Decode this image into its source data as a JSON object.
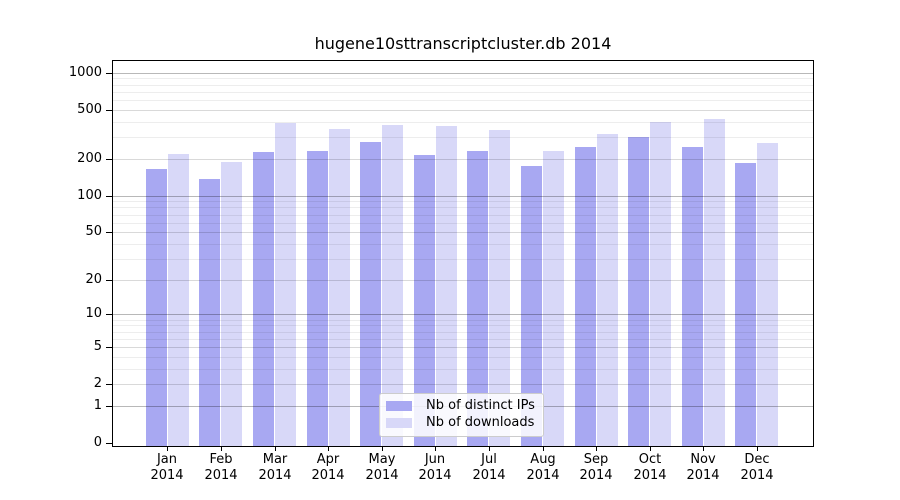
{
  "chart_data": {
    "type": "bar",
    "title": "hugene10sttranscriptcluster.db 2014",
    "year": "2014",
    "categories": [
      "Jan",
      "Feb",
      "Mar",
      "Apr",
      "May",
      "Jun",
      "Jul",
      "Aug",
      "Sep",
      "Oct",
      "Nov",
      "Dec"
    ],
    "series": [
      {
        "name": "Nb of distinct IPs",
        "color": "#a8a8f2",
        "values": [
          165,
          138,
          228,
          233,
          272,
          216,
          233,
          175,
          248,
          300,
          250,
          186
        ]
      },
      {
        "name": "Nb of downloads",
        "color": "#d8d8f8",
        "values": [
          220,
          188,
          390,
          348,
          377,
          371,
          344,
          230,
          319,
          395,
          421,
          269
        ]
      }
    ],
    "yscale": "log(1+x)",
    "y_ticks": [
      0,
      1,
      2,
      5,
      10,
      20,
      50,
      100,
      200,
      500,
      1000
    ],
    "ylim": [
      0,
      1240
    ],
    "xlabel": "",
    "ylabel": "",
    "grid": true,
    "legend_position": "lower center inside plot"
  }
}
